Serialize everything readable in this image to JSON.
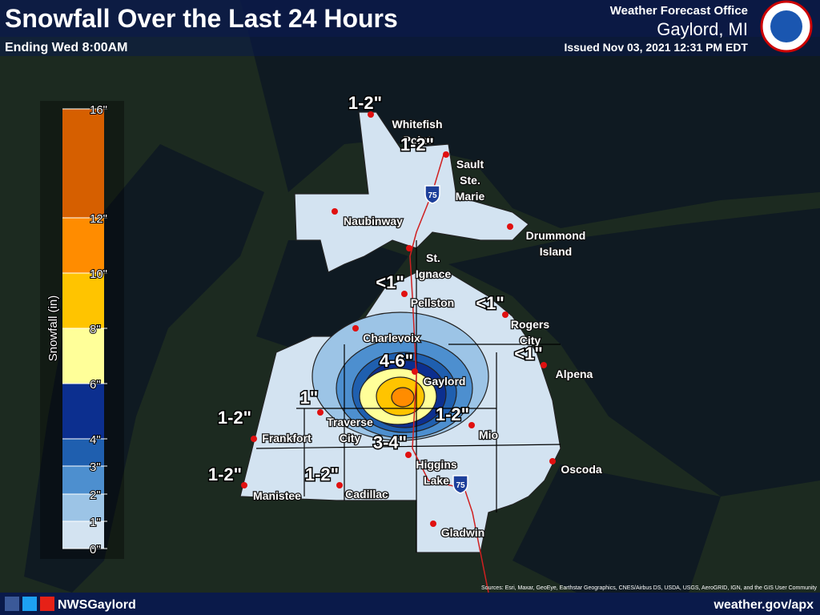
{
  "header": {
    "title": "Snowfall Over the Last 24 Hours",
    "subtitle": "Ending Wed 8:00AM",
    "office": "Weather Forecast Office",
    "location": "Gaylord, MI",
    "issued": "Issued Nov 03, 2021 12:31 PM EDT"
  },
  "legend": {
    "title": "Snowfall (in)",
    "stops": [
      "0\"",
      "1\"",
      "2\"",
      "3\"",
      "4\"",
      "6\"",
      "8\"",
      "10\"",
      "12\"",
      "16\""
    ],
    "colors": [
      "#d3e3f1",
      "#9cc4e6",
      "#4d8fcf",
      "#1f5faf",
      "#0c2f8f",
      "#ffff99",
      "#ffc400",
      "#ff8c00",
      "#d65f00"
    ]
  },
  "cities": [
    {
      "lines": [
        "Whitefish",
        "Point"
      ]
    },
    {
      "lines": [
        "Sault",
        "Ste.",
        "Marie"
      ]
    },
    {
      "lines": [
        "Naubinway"
      ]
    },
    {
      "lines": [
        "Drummond",
        "Island"
      ]
    },
    {
      "lines": [
        "St.",
        "Ignace"
      ]
    },
    {
      "lines": [
        "Pellston"
      ]
    },
    {
      "lines": [
        "Rogers",
        "City"
      ]
    },
    {
      "lines": [
        "Charlevoix"
      ]
    },
    {
      "lines": [
        "Alpena"
      ]
    },
    {
      "lines": [
        "Gaylord"
      ]
    },
    {
      "lines": [
        "Traverse",
        "City"
      ]
    },
    {
      "lines": [
        "Mio"
      ]
    },
    {
      "lines": [
        "Frankfort"
      ]
    },
    {
      "lines": [
        "Higgins",
        "Lake"
      ]
    },
    {
      "lines": [
        "Oscoda"
      ]
    },
    {
      "lines": [
        "Manistee"
      ]
    },
    {
      "lines": [
        "Cadillac"
      ]
    },
    {
      "lines": [
        "Gladwin"
      ]
    }
  ],
  "amounts": [
    "1-2\"",
    "1-2\"",
    "<1\"",
    "<1\"",
    "<1\"",
    "4-6\"",
    "1\"",
    "1-2\"",
    "1-2\"",
    "3-4\"",
    "1-2\"",
    "1-2\""
  ],
  "highways": [
    "75",
    "75"
  ],
  "footer": {
    "social": "NWSGaylord",
    "url": "weather.gov/apx",
    "attribution": "Sources: Esri, Maxar, GeoEye, Earthstar Geographics, CNES/Airbus DS, USDA, USGS, AeroGRID, IGN, and the GIS User Community"
  }
}
